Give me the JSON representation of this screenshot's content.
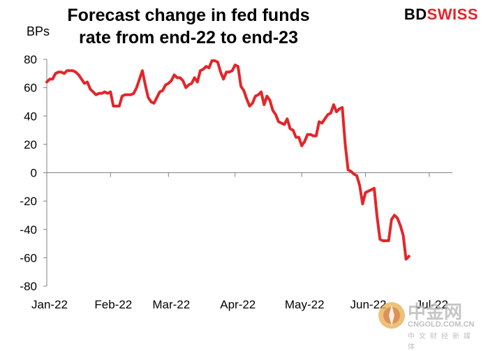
{
  "brand": {
    "part1": "BD",
    "part2": "SWISS",
    "color_part1": "#000000",
    "color_part2": "#e0262a"
  },
  "watermark": {
    "chinese": "中金网",
    "site": "CNGOLD.COM.CN",
    "subtitle": "中文财经新媒体"
  },
  "chart_data": {
    "type": "line",
    "title_line1": "Forecast change in fed funds",
    "title_line2": "rate from end-22 to end-23",
    "ylabel": "BPs",
    "xlabel": "",
    "ylim": [
      -80,
      80
    ],
    "yticks": [
      80,
      60,
      40,
      20,
      0,
      -20,
      -40,
      -60,
      -80
    ],
    "xlim": [
      0,
      140
    ],
    "xticks": [
      {
        "label": "Jan-22",
        "x": 0
      },
      {
        "label": "Feb-22",
        "x": 22
      },
      {
        "label": "Mar-22",
        "x": 42
      },
      {
        "label": "Apr-22",
        "x": 65
      },
      {
        "label": "May-22",
        "x": 88
      },
      {
        "label": "Jun-22",
        "x": 110
      },
      {
        "label": "Jul-22",
        "x": 132
      }
    ],
    "line_color": "#e3262a",
    "grid": false,
    "series": [
      {
        "name": "Forecast change in fed funds rate",
        "points": [
          [
            0,
            64
          ],
          [
            1,
            66
          ],
          [
            2,
            66
          ],
          [
            3,
            70
          ],
          [
            4,
            71
          ],
          [
            5,
            71
          ],
          [
            6,
            70
          ],
          [
            7,
            72
          ],
          [
            8,
            72
          ],
          [
            9,
            72
          ],
          [
            10,
            71
          ],
          [
            11,
            69
          ],
          [
            12,
            66
          ],
          [
            13,
            63
          ],
          [
            14,
            64
          ],
          [
            15,
            59
          ],
          [
            16,
            57
          ],
          [
            17,
            55
          ],
          [
            18,
            56
          ],
          [
            19,
            56
          ],
          [
            20,
            57
          ],
          [
            21,
            56
          ],
          [
            22,
            57
          ],
          [
            23,
            47
          ],
          [
            24,
            47
          ],
          [
            25,
            47
          ],
          [
            26,
            54
          ],
          [
            27,
            55
          ],
          [
            28,
            55
          ],
          [
            29,
            55
          ],
          [
            30,
            56
          ],
          [
            31,
            60
          ],
          [
            32,
            66
          ],
          [
            33,
            72
          ],
          [
            34,
            62
          ],
          [
            35,
            53
          ],
          [
            36,
            50
          ],
          [
            37,
            49
          ],
          [
            38,
            53
          ],
          [
            39,
            57
          ],
          [
            40,
            58
          ],
          [
            41,
            62
          ],
          [
            42,
            63
          ],
          [
            43,
            65
          ],
          [
            44,
            69
          ],
          [
            45,
            67
          ],
          [
            46,
            67
          ],
          [
            47,
            65
          ],
          [
            48,
            60
          ],
          [
            49,
            62
          ],
          [
            50,
            63
          ],
          [
            51,
            67
          ],
          [
            52,
            64
          ],
          [
            53,
            72
          ],
          [
            54,
            73
          ],
          [
            55,
            75
          ],
          [
            56,
            74
          ],
          [
            57,
            79
          ],
          [
            58,
            79
          ],
          [
            59,
            78
          ],
          [
            60,
            71
          ],
          [
            61,
            66
          ],
          [
            62,
            71
          ],
          [
            63,
            71
          ],
          [
            64,
            72
          ],
          [
            65,
            76
          ],
          [
            66,
            75
          ],
          [
            67,
            61
          ],
          [
            68,
            58
          ],
          [
            69,
            52
          ],
          [
            70,
            47
          ],
          [
            71,
            49
          ],
          [
            72,
            54
          ],
          [
            73,
            55
          ],
          [
            74,
            57
          ],
          [
            75,
            48
          ],
          [
            76,
            54
          ],
          [
            77,
            51
          ],
          [
            78,
            44
          ],
          [
            79,
            41
          ],
          [
            80,
            36
          ],
          [
            81,
            35
          ],
          [
            82,
            34
          ],
          [
            83,
            38
          ],
          [
            84,
            31
          ],
          [
            85,
            30
          ],
          [
            86,
            25
          ],
          [
            87,
            25
          ],
          [
            88,
            19
          ],
          [
            89,
            22
          ],
          [
            90,
            27
          ],
          [
            91,
            27
          ],
          [
            92,
            26
          ],
          [
            93,
            26
          ],
          [
            94,
            36
          ],
          [
            95,
            35
          ],
          [
            96,
            38
          ],
          [
            97,
            41
          ],
          [
            98,
            42
          ],
          [
            99,
            48
          ],
          [
            100,
            43
          ],
          [
            101,
            45
          ],
          [
            102,
            46
          ],
          [
            103,
            20
          ],
          [
            104,
            2
          ],
          [
            105,
            1
          ],
          [
            106,
            -1
          ],
          [
            107,
            -2
          ],
          [
            108,
            -9
          ],
          [
            109,
            -22
          ],
          [
            110,
            -14
          ],
          [
            111,
            -13
          ],
          [
            112,
            -12
          ],
          [
            113,
            -11
          ],
          [
            114,
            -31
          ],
          [
            115,
            -47
          ],
          [
            116,
            -48
          ],
          [
            117,
            -48
          ],
          [
            118,
            -48
          ],
          [
            119,
            -33
          ],
          [
            120,
            -30
          ],
          [
            121,
            -32
          ],
          [
            122,
            -37
          ],
          [
            123,
            -44
          ],
          [
            124,
            -61
          ],
          [
            125,
            -59
          ]
        ]
      }
    ]
  }
}
